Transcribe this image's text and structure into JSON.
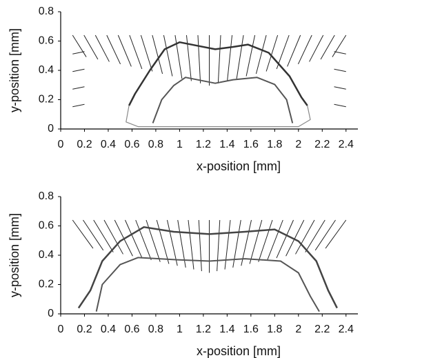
{
  "chart_data": [
    {
      "type": "image",
      "xlabel": "x-position [mm]",
      "ylabel": "y-position [mm]",
      "xlim": [
        0,
        2.5
      ],
      "ylim": [
        0,
        0.8
      ],
      "xticks": [
        0,
        0.2,
        0.4,
        0.6,
        0.8,
        1,
        1.2,
        1.4,
        1.6,
        1.8,
        2,
        2.2,
        2.4
      ],
      "yticks": [
        0,
        0.2,
        0.4,
        0.6,
        0.8
      ]
    },
    {
      "type": "image",
      "xlabel": "x-position [mm]",
      "ylabel": "y-position [mm]",
      "xlim": [
        0,
        2.5
      ],
      "ylim": [
        0,
        0.8
      ],
      "xticks": [
        0,
        0.2,
        0.4,
        0.6,
        0.8,
        1,
        1.2,
        1.4,
        1.6,
        1.8,
        2,
        2.2,
        2.4
      ],
      "yticks": [
        0,
        0.2,
        0.4,
        0.6,
        0.8
      ]
    }
  ]
}
